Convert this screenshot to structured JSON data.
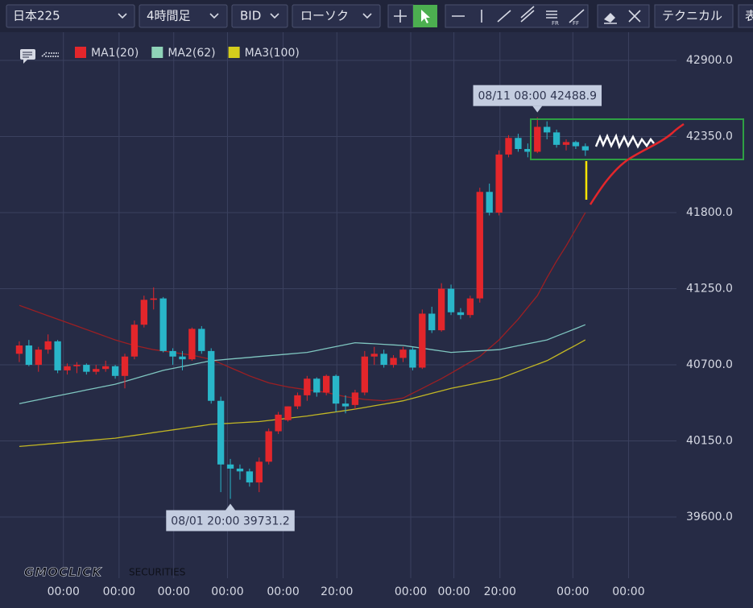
{
  "toolbar": {
    "symbol": "日本225",
    "timeframe": "4時間足",
    "price_type": "BID",
    "chart_style": "ローソク",
    "technical": "テクニカル",
    "cut_button": "表"
  },
  "logo": {
    "brand": "GMOCLICK",
    "suffix": "SECURITIES"
  },
  "chart_data": {
    "type": "candlestick",
    "up_color": "#e3262b",
    "down_color": "#29b6c9",
    "ylim": [
      39158,
      43104
    ],
    "yticks": [
      {
        "value": 39600,
        "label": "39600.0"
      },
      {
        "value": 40150,
        "label": "40150.0"
      },
      {
        "value": 40700,
        "label": "40700.0"
      },
      {
        "value": 41250,
        "label": "41250.0"
      },
      {
        "value": 41800,
        "label": "41800.0"
      },
      {
        "value": 42350,
        "label": "42350.0"
      },
      {
        "value": 42900,
        "label": "42900.0"
      }
    ],
    "xlim": [
      -0.5,
      68.5
    ],
    "xticks": [
      {
        "value": 4.6,
        "label": "00:00"
      },
      {
        "value": 10.4,
        "label": "00:00"
      },
      {
        "value": 16.1,
        "label": "00:00"
      },
      {
        "value": 21.7,
        "label": "00:00"
      },
      {
        "value": 27.5,
        "label": "00:00"
      },
      {
        "value": 33.1,
        "label": "20:00"
      },
      {
        "value": 40.8,
        "label": "00:00"
      },
      {
        "value": 45.3,
        "label": "00:00"
      },
      {
        "value": 50.1,
        "label": "20:00"
      },
      {
        "value": 57.7,
        "label": "00:00"
      },
      {
        "value": 63.5,
        "label": "00:00"
      }
    ],
    "grid": true,
    "ohlc": [
      [
        40780,
        40870,
        40720,
        40840
      ],
      [
        40840,
        40880,
        40690,
        40700
      ],
      [
        40700,
        40830,
        40650,
        40810
      ],
      [
        40810,
        40920,
        40780,
        40870
      ],
      [
        40870,
        40880,
        40640,
        40660
      ],
      [
        40660,
        40710,
        40630,
        40690
      ],
      [
        40690,
        40720,
        40640,
        40700
      ],
      [
        40700,
        40710,
        40630,
        40650
      ],
      [
        40650,
        40700,
        40630,
        40670
      ],
      [
        40670,
        40730,
        40650,
        40690
      ],
      [
        40690,
        40700,
        40600,
        40620
      ],
      [
        40620,
        40780,
        40530,
        40760
      ],
      [
        40760,
        41020,
        40740,
        40990
      ],
      [
        40990,
        41200,
        40970,
        41170
      ],
      [
        41170,
        41260,
        41100,
        41180
      ],
      [
        41180,
        41190,
        40790,
        40800
      ],
      [
        40800,
        40820,
        40700,
        40760
      ],
      [
        40760,
        40800,
        40660,
        40740
      ],
      [
        40740,
        40970,
        40730,
        40960
      ],
      [
        40960,
        40980,
        40780,
        40800
      ],
      [
        40800,
        40820,
        40420,
        40440
      ],
      [
        40440,
        40470,
        39780,
        39980
      ],
      [
        39980,
        40020,
        39731.2,
        39950
      ],
      [
        39950,
        39980,
        39870,
        39930
      ],
      [
        39930,
        39950,
        39820,
        39850
      ],
      [
        39850,
        40030,
        39780,
        40000
      ],
      [
        40000,
        40240,
        39980,
        40220
      ],
      [
        40220,
        40360,
        40200,
        40340
      ],
      [
        40300,
        40400,
        40290,
        40400
      ],
      [
        40400,
        40500,
        40380,
        40480
      ],
      [
        40480,
        40620,
        40440,
        40600
      ],
      [
        40600,
        40610,
        40470,
        40500
      ],
      [
        40500,
        40630,
        40480,
        40620
      ],
      [
        40620,
        40630,
        40360,
        40420
      ],
      [
        40420,
        40480,
        40350,
        40400
      ],
      [
        40410,
        40520,
        40380,
        40500
      ],
      [
        40500,
        40800,
        40480,
        40760
      ],
      [
        40760,
        40830,
        40700,
        40780
      ],
      [
        40780,
        40810,
        40680,
        40700
      ],
      [
        40700,
        40770,
        40680,
        40750
      ],
      [
        40750,
        40830,
        40720,
        40810
      ],
      [
        40810,
        40830,
        40660,
        40680
      ],
      [
        40680,
        41100,
        40670,
        41070
      ],
      [
        41070,
        41120,
        40930,
        40950
      ],
      [
        40950,
        41290,
        40940,
        41250
      ],
      [
        41250,
        41280,
        41060,
        41080
      ],
      [
        41080,
        41110,
        41030,
        41060
      ],
      [
        41060,
        41200,
        41040,
        41180
      ],
      [
        41180,
        41980,
        41150,
        41950
      ],
      [
        41950,
        42010,
        41780,
        41800
      ],
      [
        41800,
        42250,
        41780,
        42220
      ],
      [
        42220,
        42360,
        42200,
        42340
      ],
      [
        42340,
        42370,
        42240,
        42260
      ],
      [
        42260,
        42300,
        42200,
        42240
      ],
      [
        42240,
        42488.9,
        42230,
        42420
      ],
      [
        42420,
        42460,
        42330,
        42380
      ],
      [
        42380,
        42400,
        42270,
        42290
      ],
      [
        42290,
        42330,
        42250,
        42310
      ],
      [
        42310,
        42320,
        42260,
        42280
      ],
      [
        42280,
        42300,
        42210,
        42250
      ]
    ],
    "moving_averages": [
      {
        "name": "MA1(20)",
        "color": "#e3262b",
        "line_color": "#9c1f23",
        "values": [
          41130,
          41105,
          41080,
          41055,
          41030,
          41005,
          40980,
          40955,
          40930,
          40905,
          40880,
          40860,
          40840,
          40825,
          40810,
          40800,
          40790,
          40780,
          40770,
          40755,
          40740,
          40710,
          40680,
          40650,
          40620,
          40595,
          40570,
          40555,
          40540,
          40530,
          40520,
          40510,
          40500,
          40485,
          40470,
          40460,
          40450,
          40445,
          40440,
          40450,
          40460,
          40495,
          40530,
          40565,
          40600,
          40640,
          40680,
          40720,
          40760,
          40820,
          40880,
          40955,
          41030,
          41115,
          41200,
          41330,
          41450,
          41560,
          41680,
          41800
        ]
      },
      {
        "name": "MA2(62)",
        "color": "#8fd3b8",
        "line_color": "#7fc6c0",
        "values": [
          40420,
          40434,
          40448,
          40462,
          40476,
          40490,
          40504,
          40518,
          40532,
          40546,
          40560,
          40580,
          40600,
          40620,
          40640,
          40660,
          40674,
          40688,
          40702,
          40716,
          40730,
          40736,
          40742,
          40748,
          40754,
          40760,
          40766,
          40772,
          40778,
          40784,
          40790,
          40804,
          40818,
          40832,
          40846,
          40860,
          40856,
          40852,
          40848,
          40844,
          40840,
          40830,
          40820,
          40810,
          40800,
          40790,
          40794,
          40798,
          40802,
          40806,
          40810,
          40824,
          40838,
          40852,
          40866,
          40880,
          40908,
          40935,
          40962,
          40990
        ]
      },
      {
        "name": "MA3(100)",
        "color": "#d4cc1c",
        "line_color": "#c2b724",
        "values": [
          40110,
          40116,
          40122,
          40128,
          40134,
          40140,
          40146,
          40152,
          40158,
          40164,
          40170,
          40180,
          40190,
          40200,
          40210,
          40220,
          40230,
          40240,
          40250,
          40260,
          40270,
          40274,
          40278,
          40282,
          40286,
          40290,
          40298,
          40306,
          40314,
          40322,
          40330,
          40340,
          40350,
          40360,
          40370,
          40380,
          40392,
          40404,
          40416,
          40428,
          40440,
          40458,
          40476,
          40494,
          40512,
          40530,
          40544,
          40558,
          40572,
          40586,
          40600,
          40626,
          40652,
          40678,
          40704,
          40730,
          40767,
          40805,
          40842,
          40880
        ]
      }
    ],
    "annotations": [
      {
        "text": "08/11 08:00 42488.9",
        "value": 42488.9
      },
      {
        "text": "08/01 20:00 39731.2",
        "value": 39731.2
      }
    ]
  }
}
